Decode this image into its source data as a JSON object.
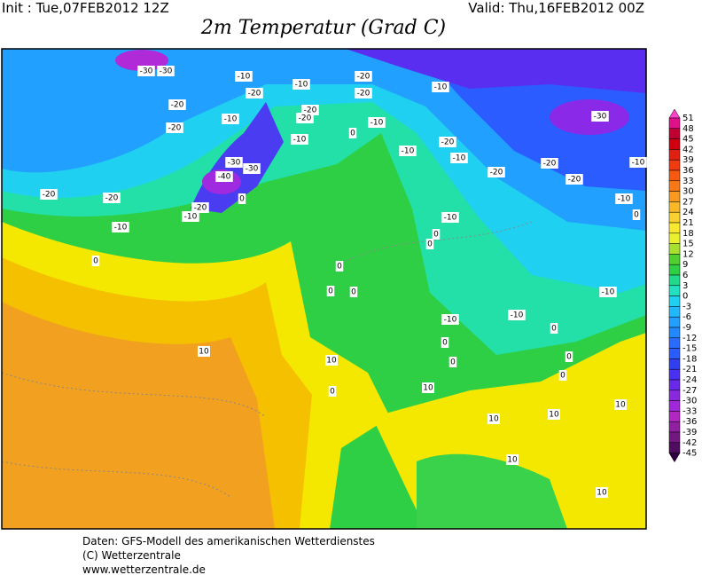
{
  "header": {
    "init": "Init : Tue,07FEB2012 12Z",
    "valid": "Valid: Thu,16FEB2012 00Z",
    "title": "2m Temperatur (Grad C)"
  },
  "colorbar": {
    "labels": [
      51,
      48,
      45,
      42,
      39,
      36,
      33,
      30,
      27,
      24,
      21,
      18,
      15,
      12,
      9,
      6,
      3,
      0,
      -3,
      -6,
      -9,
      -12,
      -15,
      -18,
      -21,
      -24,
      -27,
      -30,
      -33,
      -36,
      -39,
      -42,
      -45
    ]
  },
  "contour_labels": [
    -30,
    -30,
    -10,
    -20,
    -20,
    -10,
    -20,
    -10,
    -20,
    -20,
    -10,
    -20,
    -10,
    -30,
    -20,
    0,
    -10,
    -20,
    -10,
    -10,
    -30,
    -30,
    -20,
    -10,
    -40,
    -20,
    -20,
    -20,
    -20,
    0,
    -20,
    -10,
    -10,
    0,
    -10,
    -10,
    0,
    0,
    0,
    0,
    0,
    0,
    -10,
    -10,
    -10,
    0,
    0,
    10,
    10,
    0,
    0,
    0,
    10,
    0,
    10,
    10,
    10,
    10,
    10
  ],
  "footer": {
    "line1": "Daten: GFS-Modell des amerikanischen Wetterdienstes",
    "line2": "(C) Wetterzentrale",
    "line3": "www.wetterzentrale.de"
  }
}
